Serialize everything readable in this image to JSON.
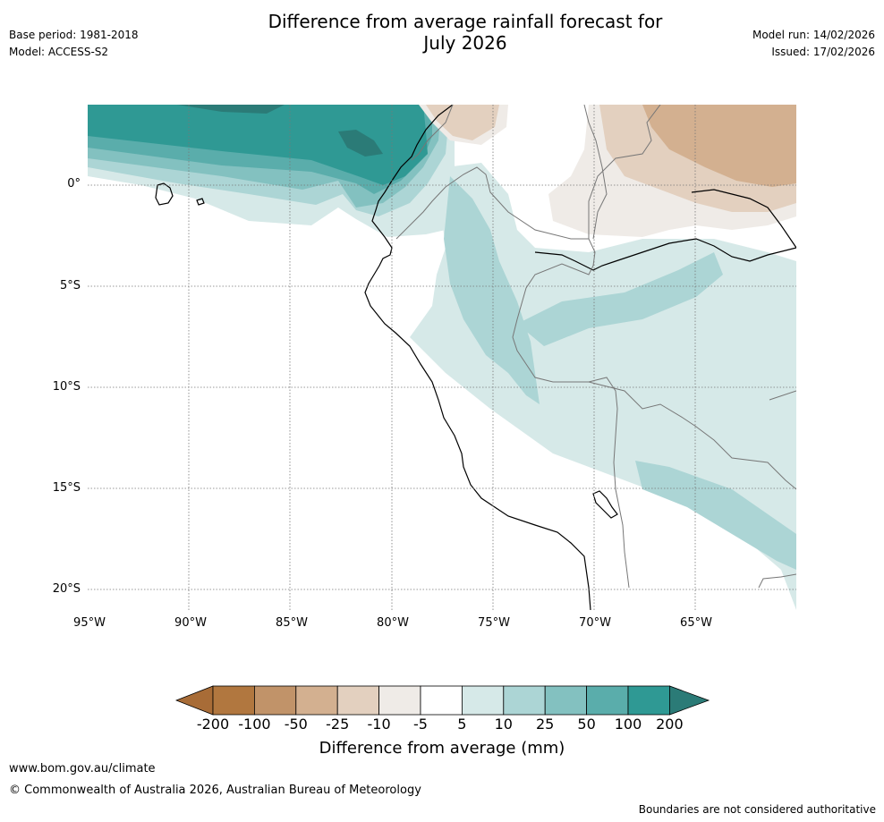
{
  "header": {
    "title_line1": "Difference from average rainfall forecast for",
    "title_line2": "July 2026",
    "base_period": "Base period: 1981-2018",
    "model": "Model: ACCESS-S2",
    "model_run": "Model run: 14/02/2026",
    "issued": "Issued: 17/02/2026"
  },
  "map": {
    "region": "Western South America",
    "lat_labels": [
      "0°",
      "5°S",
      "10°S",
      "15°S",
      "20°S"
    ],
    "lon_labels": [
      "95°W",
      "90°W",
      "85°W",
      "80°W",
      "75°W",
      "70°W",
      "65°W"
    ]
  },
  "legend": {
    "title": "Difference from average (mm)",
    "ticks": [
      "-200",
      "-100",
      "-50",
      "-25",
      "-10",
      "-5",
      "5",
      "10",
      "25",
      "50",
      "100",
      "200"
    ],
    "colors": [
      "#a86c37",
      "#b1773f",
      "#c19369",
      "#d3b090",
      "#e3d0bf",
      "#efebe7",
      "#ffffff",
      "#d6e9e8",
      "#acd5d5",
      "#83c1c0",
      "#5aadab",
      "#2f9994",
      "#2b7b77"
    ]
  },
  "footer": {
    "url": "www.bom.gov.au/climate",
    "copyright": "© Commonwealth of Australia 2026, Australian Bureau of Meteorology",
    "disclaimer": "Boundaries are not considered authoritative"
  }
}
